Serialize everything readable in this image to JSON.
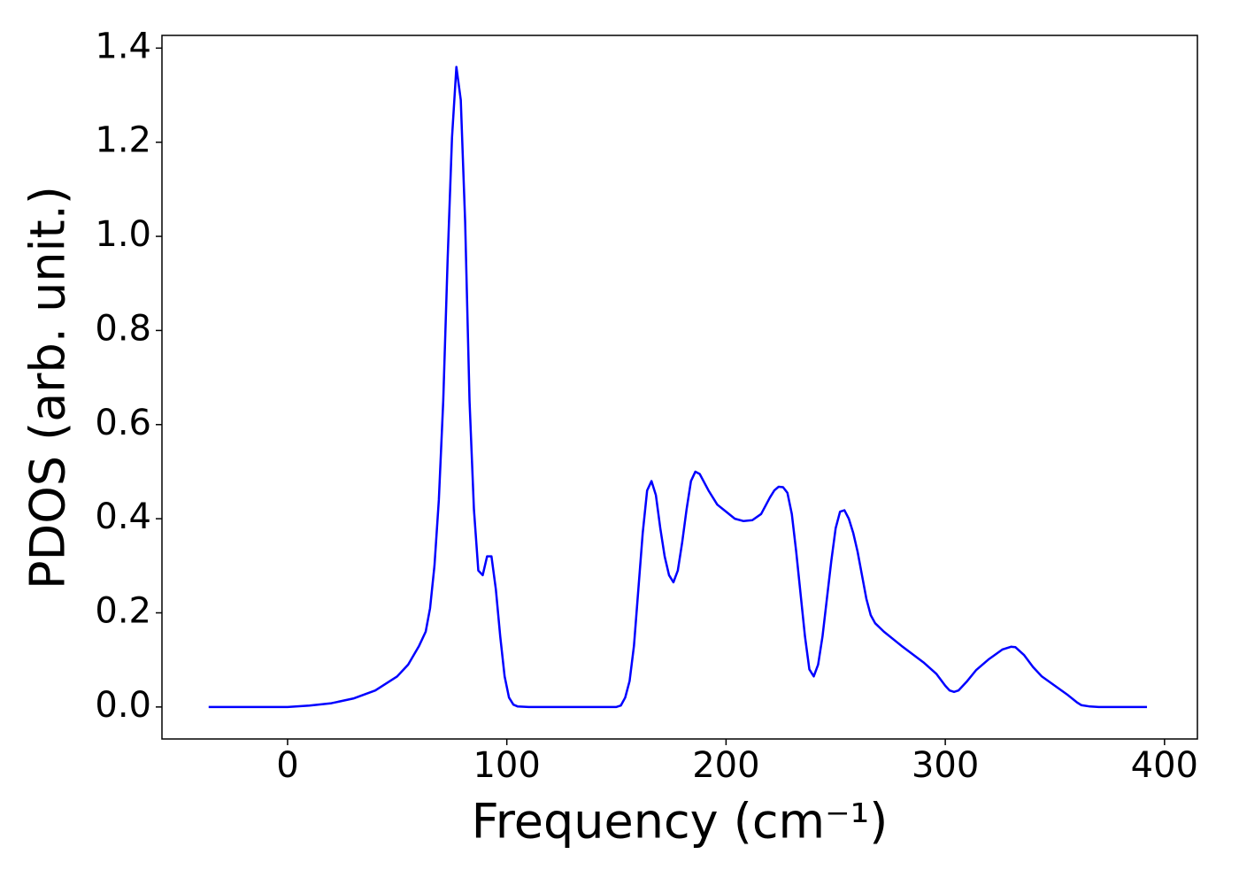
{
  "chart_data": {
    "type": "line",
    "xlabel": "Frequency (cm⁻¹)",
    "ylabel": "PDOS (arb. unit.)",
    "series": [
      {
        "color": "#0000ff",
        "x": [
          -36,
          0,
          10,
          20,
          30,
          40,
          50,
          55,
          60,
          63,
          65,
          67,
          69,
          71,
          73,
          75,
          77,
          79,
          81,
          83,
          85,
          87,
          89,
          91,
          93,
          95,
          97,
          99,
          101,
          103,
          105,
          110,
          150,
          152,
          154,
          156,
          158,
          160,
          162,
          164,
          166,
          168,
          170,
          172,
          174,
          176,
          178,
          180,
          182,
          184,
          186,
          188,
          192,
          196,
          200,
          204,
          208,
          212,
          216,
          220,
          222,
          224,
          226,
          228,
          230,
          232,
          234,
          236,
          238,
          240,
          242,
          244,
          246,
          248,
          250,
          252,
          254,
          256,
          258,
          260,
          262,
          264,
          266,
          268,
          272,
          280,
          290,
          296,
          300,
          302,
          304,
          306,
          310,
          314,
          320,
          326,
          330,
          332,
          336,
          340,
          344,
          350,
          356,
          360,
          362,
          366,
          370,
          392
        ],
        "values": [
          0,
          0,
          0.003,
          0.008,
          0.018,
          0.035,
          0.065,
          0.09,
          0.13,
          0.16,
          0.21,
          0.3,
          0.44,
          0.65,
          0.95,
          1.21,
          1.36,
          1.29,
          1.03,
          0.65,
          0.42,
          0.29,
          0.28,
          0.32,
          0.32,
          0.25,
          0.15,
          0.065,
          0.02,
          0.005,
          0.001,
          0,
          0,
          0.003,
          0.02,
          0.055,
          0.13,
          0.25,
          0.37,
          0.46,
          0.48,
          0.45,
          0.38,
          0.32,
          0.28,
          0.265,
          0.29,
          0.35,
          0.42,
          0.48,
          0.5,
          0.495,
          0.46,
          0.43,
          0.415,
          0.4,
          0.395,
          0.397,
          0.41,
          0.445,
          0.46,
          0.468,
          0.467,
          0.455,
          0.41,
          0.33,
          0.24,
          0.15,
          0.08,
          0.065,
          0.09,
          0.15,
          0.23,
          0.31,
          0.38,
          0.415,
          0.418,
          0.4,
          0.37,
          0.33,
          0.28,
          0.23,
          0.195,
          0.178,
          0.16,
          0.13,
          0.095,
          0.07,
          0.045,
          0.035,
          0.032,
          0.035,
          0.055,
          0.078,
          0.102,
          0.122,
          0.128,
          0.127,
          0.11,
          0.085,
          0.065,
          0.045,
          0.025,
          0.01,
          0.004,
          0.001,
          0,
          0
        ]
      }
    ],
    "xlim": [
      -57.3,
      415
    ],
    "xticks": [
      0,
      100,
      200,
      300,
      400
    ],
    "ylim": [
      -0.068,
      1.427
    ],
    "yticks": [
      {
        "value": 0,
        "label": "0.0"
      },
      {
        "value": 0.2,
        "label": "0.2"
      },
      {
        "value": 0.4,
        "label": "0.4"
      },
      {
        "value": 0.6,
        "label": "0.6"
      },
      {
        "value": 0.8,
        "label": "0.8"
      },
      {
        "value": 1,
        "label": "1.0"
      },
      {
        "value": 1.2,
        "label": "1.2"
      },
      {
        "value": 1.4,
        "label": "1.4"
      }
    ],
    "grid": false
  }
}
